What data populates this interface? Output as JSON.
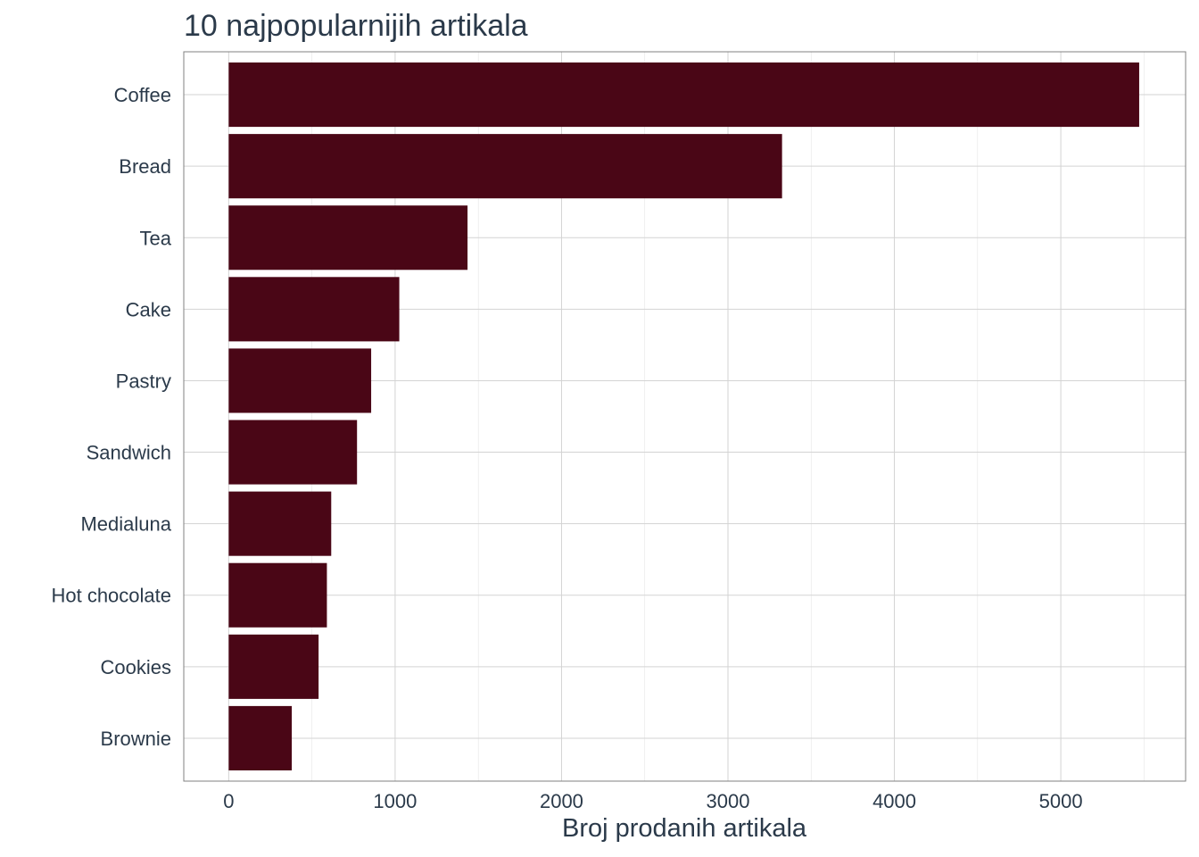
{
  "chart_data": {
    "type": "bar",
    "orientation": "horizontal",
    "title": "10 najpopularnijih artikala",
    "xlabel": "Broj prodanih artikala",
    "ylabel": "",
    "categories": [
      "Coffee",
      "Bread",
      "Tea",
      "Cake",
      "Pastry",
      "Sandwich",
      "Medialuna",
      "Hot chocolate",
      "Cookies",
      "Brownie"
    ],
    "values": [
      5471,
      3325,
      1435,
      1025,
      856,
      771,
      616,
      590,
      540,
      379
    ],
    "xlim": [
      -270,
      5750
    ],
    "xticks": [
      0,
      1000,
      2000,
      3000,
      4000,
      5000
    ],
    "xtick_labels": [
      "0",
      "1000",
      "2000",
      "3000",
      "4000",
      "5000"
    ],
    "grid": true,
    "bar_color": "#4a0616",
    "grid_color": "#d3d3d3",
    "text_color": "#2b3a4a"
  }
}
